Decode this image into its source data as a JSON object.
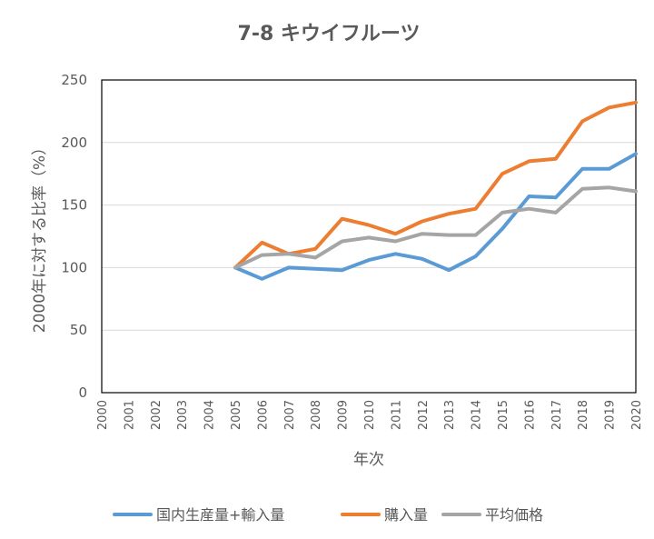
{
  "chart_data": {
    "type": "line",
    "title": "7-8 キウイフルーツ",
    "xlabel": "年次",
    "ylabel": "2000年に対する比率（%）",
    "ylim": [
      0,
      250
    ],
    "yticks": [
      0,
      50,
      100,
      150,
      200,
      250
    ],
    "categories": [
      "2000",
      "2001",
      "2002",
      "2003",
      "2004",
      "2005",
      "2006",
      "2007",
      "2008",
      "2009",
      "2010",
      "2011",
      "2012",
      "2013",
      "2014",
      "2015",
      "2016",
      "2017",
      "2018",
      "2019",
      "2020"
    ],
    "grid": true,
    "legend_position": "bottom",
    "series": [
      {
        "name": "国内生産量+輸入量",
        "color": "#5b9bd5",
        "values": [
          null,
          null,
          null,
          null,
          null,
          100,
          91,
          100,
          99,
          98,
          106,
          111,
          107,
          98,
          109,
          131,
          157,
          156,
          179,
          179,
          191
        ]
      },
      {
        "name": "購入量",
        "color": "#ed7d31",
        "values": [
          null,
          null,
          null,
          null,
          null,
          100,
          120,
          111,
          115,
          139,
          134,
          127,
          137,
          143,
          147,
          175,
          185,
          187,
          217,
          228,
          232
        ]
      },
      {
        "name": "平均価格",
        "color": "#a5a5a5",
        "values": [
          null,
          null,
          null,
          null,
          null,
          100,
          110,
          111,
          108,
          121,
          124,
          121,
          127,
          126,
          126,
          144,
          147,
          144,
          163,
          164,
          161
        ]
      }
    ]
  }
}
